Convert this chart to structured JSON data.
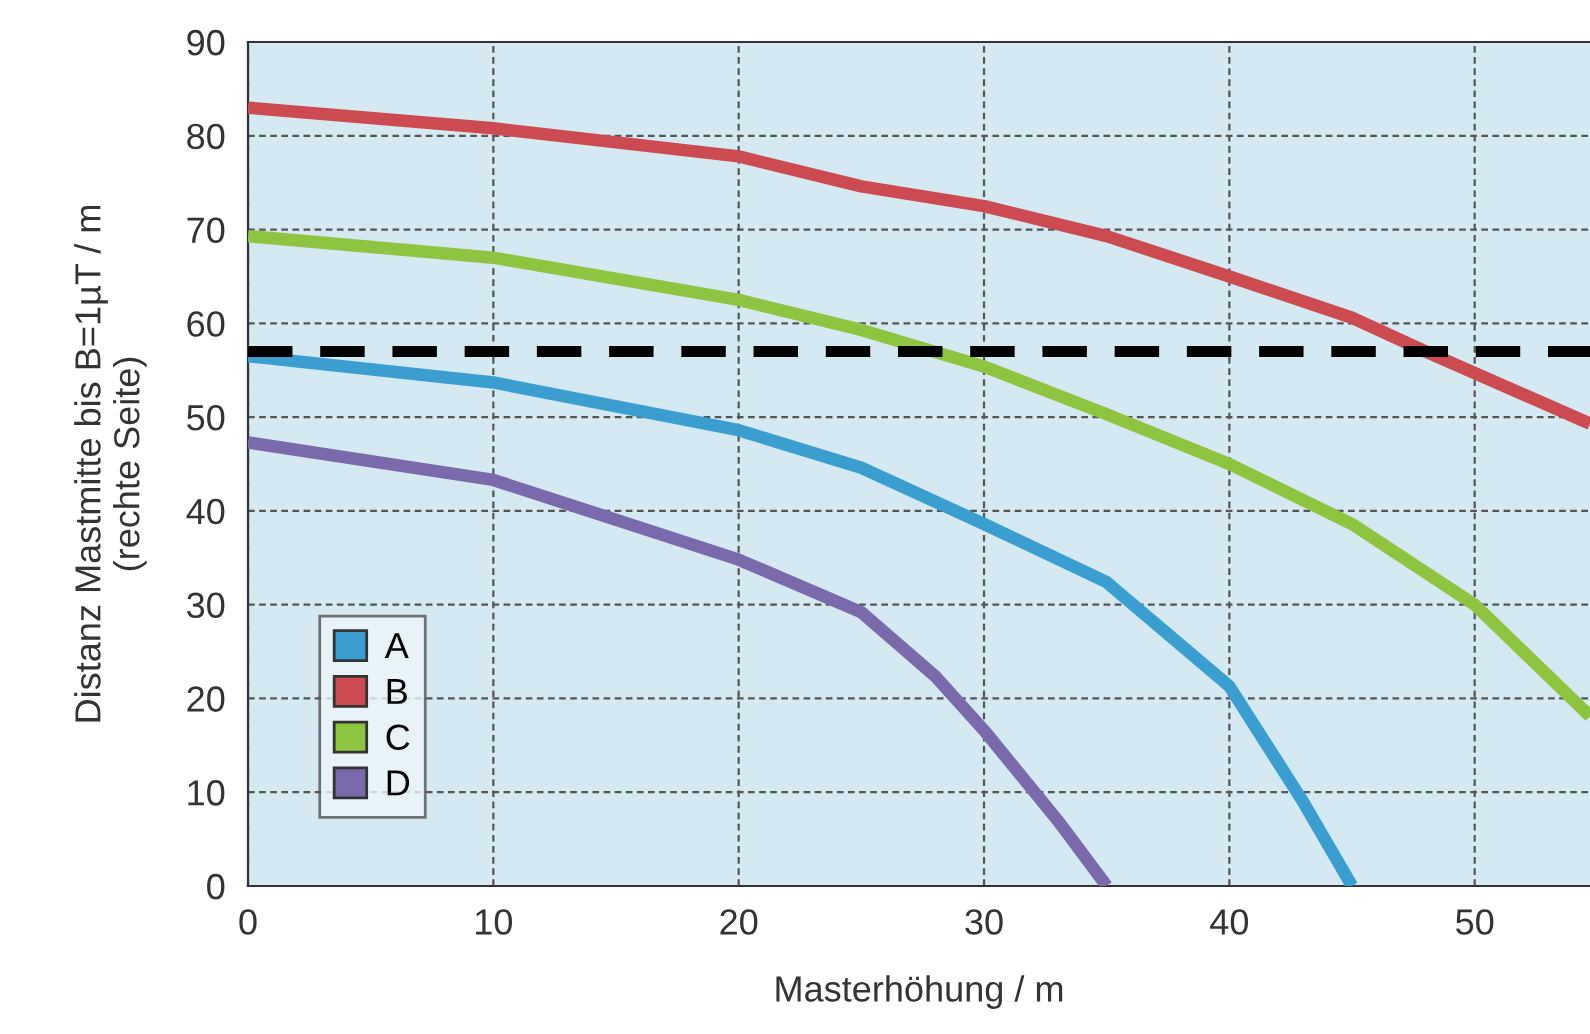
{
  "chart_data": {
    "type": "line",
    "xlabel": "Masterhöhung / m",
    "ylabel": "Distanz Mastmitte bis B=1µT / m\n(rechte Seite)",
    "xlim": [
      0,
      54.7
    ],
    "ylim": [
      0,
      90
    ],
    "xticks": [
      0,
      10,
      20,
      30,
      40,
      50
    ],
    "yticks": [
      0,
      10,
      20,
      30,
      40,
      50,
      60,
      70,
      80,
      90
    ],
    "grid": true,
    "legend": "bottom left",
    "line_style": "solid",
    "marker": "none",
    "ref_lines": [
      {
        "axis": "y",
        "value": 57,
        "color": "#000000",
        "line_style": "dashed"
      }
    ],
    "series": [
      {
        "name": "A",
        "color": "#3a9fd0",
        "x": [
          0,
          10,
          20,
          25,
          30,
          35,
          40,
          43,
          45
        ],
        "values": [
          56.5,
          53.7,
          48.6,
          44.6,
          38.6,
          32.4,
          21.3,
          9,
          0
        ]
      },
      {
        "name": "B",
        "color": "#cc4b50",
        "x": [
          0,
          10,
          20,
          25,
          30,
          35,
          40,
          45,
          48,
          54.7
        ],
        "values": [
          83,
          80.8,
          77.8,
          74.6,
          72.5,
          69.3,
          65,
          60.6,
          57,
          49.3
        ]
      },
      {
        "name": "C",
        "color": "#8dc440",
        "x": [
          0,
          10,
          20,
          25,
          30,
          35,
          40,
          45,
          50,
          54.7
        ],
        "values": [
          69.3,
          67,
          62.5,
          59.3,
          55.4,
          50.3,
          45,
          38.6,
          30,
          18.1
        ]
      },
      {
        "name": "D",
        "color": "#7a6aac",
        "x": [
          0,
          10,
          20,
          25,
          28,
          30,
          33,
          35
        ],
        "values": [
          47.3,
          43.3,
          34.8,
          29.2,
          22.4,
          16.6,
          7,
          0
        ]
      }
    ]
  }
}
